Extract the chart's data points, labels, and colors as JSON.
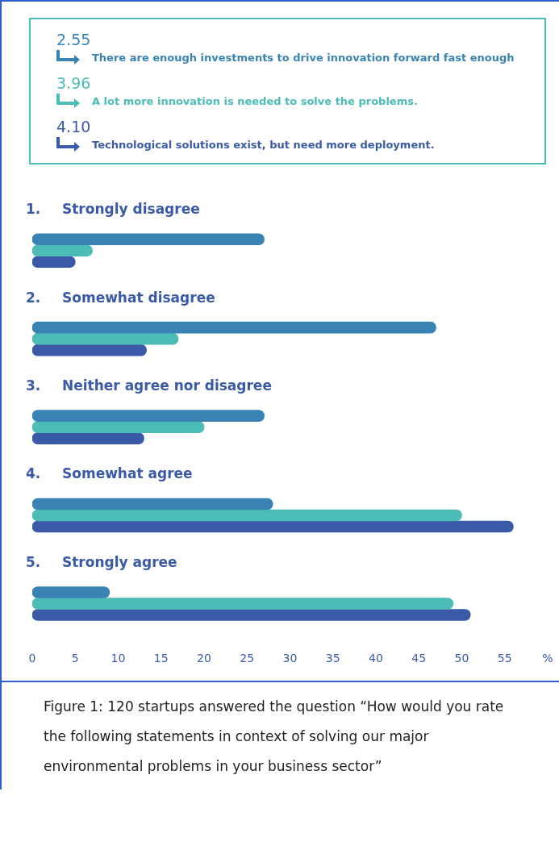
{
  "chart_data": {
    "type": "bar",
    "orientation": "horizontal",
    "legend": "top",
    "grid": false,
    "categories": [
      "1. Strongly disagree",
      "2. Somewhat disagree",
      "3. Neither agree nor disagree",
      "4. Somewhat agree",
      "5. Strongly agree"
    ],
    "xlim": [
      0,
      60
    ],
    "xticks": [
      0,
      5,
      10,
      15,
      20,
      25,
      30,
      35,
      40,
      45,
      50,
      55,
      {
        "value": 60,
        "label": "%"
      }
    ],
    "series": [
      {
        "name": "There are enough investments to drive innovation forward fast enough",
        "color": "#3a84b5",
        "values": [
          27,
          47,
          27,
          28,
          9
        ]
      },
      {
        "name": "A lot more innovation is needed to solve the problems.",
        "color": "#4cbcb6",
        "values": [
          7,
          17,
          20,
          50,
          49
        ]
      },
      {
        "name": "Technological solutions exist, but need more deployment.",
        "color": "#3a5aa8",
        "values": [
          5,
          13.3,
          13,
          56,
          51
        ]
      }
    ],
    "annotations": [
      "2.55",
      "3.96",
      "4.10",
      "Figure 1: 120 startups answered the question “How would you rate the following statements in context of solving our major environmental problems in your business sector”"
    ]
  }
}
